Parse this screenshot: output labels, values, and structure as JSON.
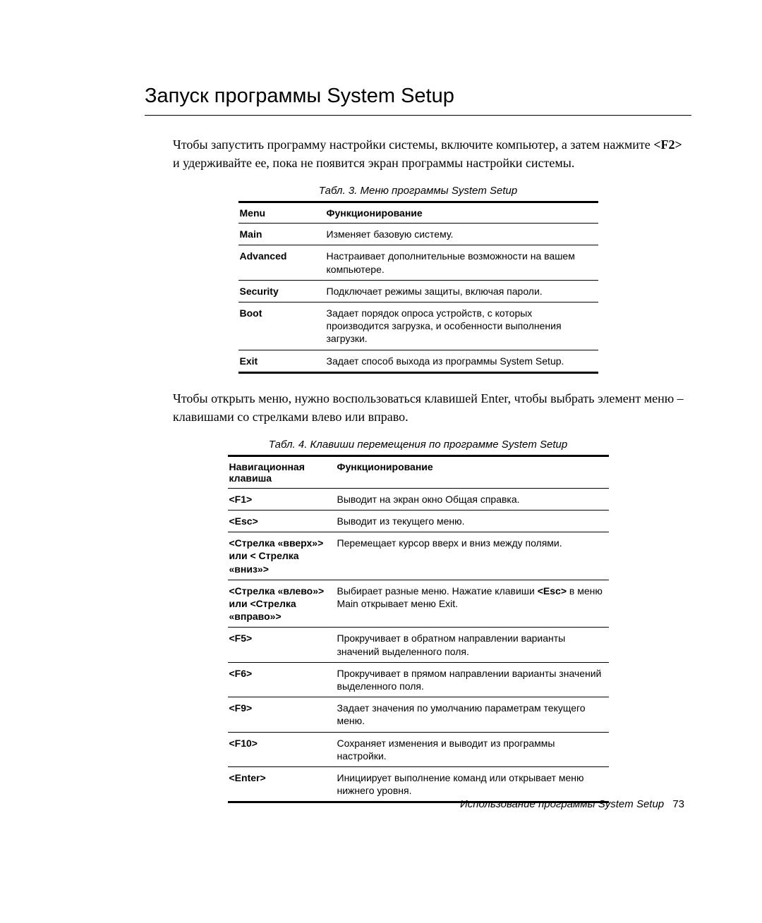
{
  "title": "Запуск программы System Setup",
  "intro_segments": [
    "Чтобы запустить программу настройки системы, включите компьютер, а затем нажмите ",
    "<F2>",
    " и удерживайте ее, пока не появится экран программы настройки системы."
  ],
  "table3": {
    "caption": "Табл. 3.   Меню программы System Setup",
    "columns": [
      "Menu",
      "Функционирование"
    ],
    "rows": [
      [
        "Main",
        "Изменяет базовую систему."
      ],
      [
        "Advanced",
        "Настраивает дополнительные возможности на вашем компьютере."
      ],
      [
        "Security",
        "Подключает режимы защиты, включая пароли."
      ],
      [
        "Boot",
        "Задает порядок опроса устройств, с которых производится загрузка, и особенности выполнения загрузки."
      ],
      [
        "Exit",
        "Задает способ выхода из программы System Setup."
      ]
    ]
  },
  "mid_text": "Чтобы открыть меню, нужно воспользоваться клавишей Enter, чтобы выбрать элемент меню – клавишами со стрелками влево или вправо.",
  "table4": {
    "caption": "Табл. 4.   Клавиши перемещения по программе System Setup",
    "columns": [
      "Навигационная клавиша",
      "Функционирование"
    ],
    "rows_plain": [
      [
        "<F1>",
        "Выводит на экран окно Общая справка."
      ],
      [
        "<Esc>",
        "Выводит из текущего меню."
      ],
      [
        "<Стрелка «вверх»> или < Стрелка «вниз»>",
        "Перемещает курсор вверх и вниз между полями."
      ]
    ],
    "row_mixed": {
      "key": "<Стрелка «влево»> или <Стрелка «вправо»>",
      "desc_parts": [
        "Выбирает разные меню. Нажатие клавиши ",
        "<Esc>",
        " в меню Main открывает меню Exit."
      ]
    },
    "rows_tail": [
      [
        "<F5>",
        "Прокручивает в обратном направлении варианты значений выделенного поля."
      ],
      [
        "<F6>",
        "Прокручивает в прямом направлении варианты значений выделенного поля."
      ],
      [
        "<F9>",
        "Задает значения по умолчанию параметрам текущего меню."
      ],
      [
        "<F10>",
        "Сохраняет изменения и выводит из программы настройки."
      ],
      [
        "<Enter>",
        "Инициирует выполнение команд или открывает меню нижнего уровня."
      ]
    ]
  },
  "footer_text": "Использование программы System Setup",
  "footer_page": "73"
}
